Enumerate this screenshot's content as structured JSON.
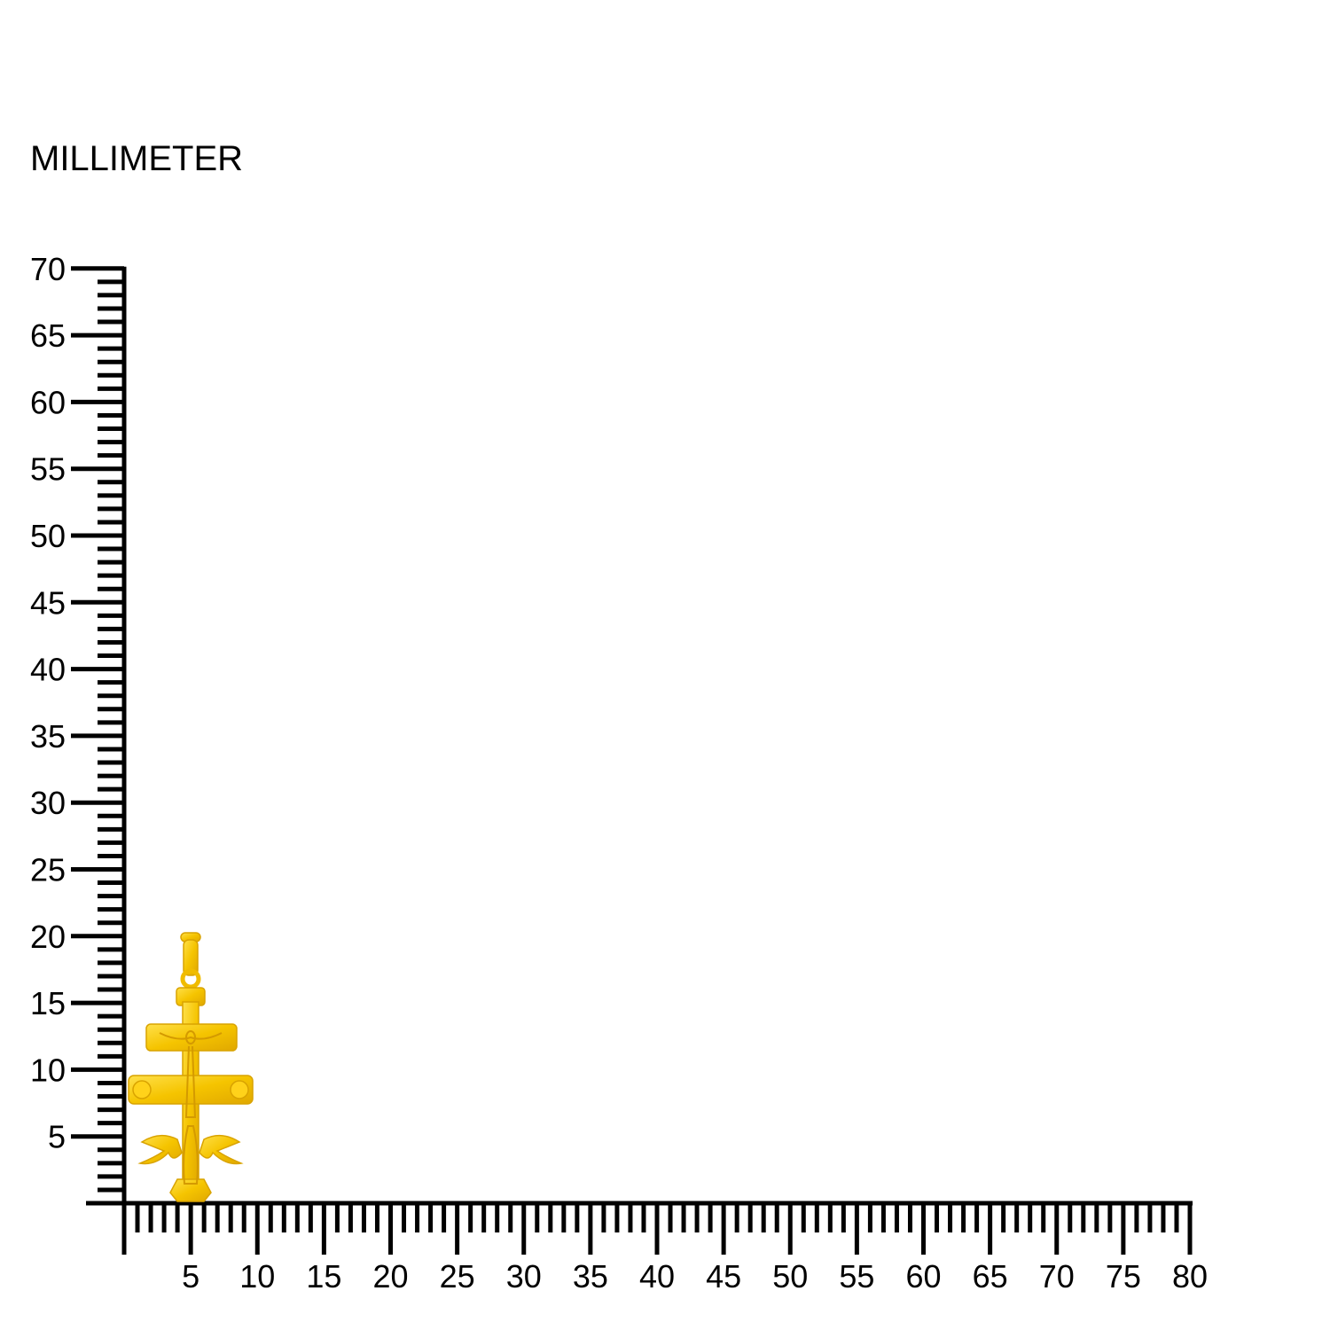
{
  "unit_label": "MILLIMETER",
  "ruler": {
    "y_max_mm": 70,
    "x_max_mm": 80,
    "major_step_mm": 5,
    "minor_step_mm": 1,
    "y_labels": [
      "5",
      "10",
      "15",
      "20",
      "25",
      "30",
      "35",
      "40",
      "45",
      "50",
      "55",
      "60",
      "65",
      "70"
    ],
    "x_labels": [
      "5",
      "10",
      "15",
      "20",
      "25",
      "30",
      "35",
      "40",
      "45",
      "50",
      "55",
      "60",
      "65",
      "70",
      "75",
      "80"
    ]
  },
  "product": {
    "name": "caravaca-cross-pendant",
    "height_mm": 20,
    "width_mm": 9.3,
    "color": "#F5C400"
  }
}
